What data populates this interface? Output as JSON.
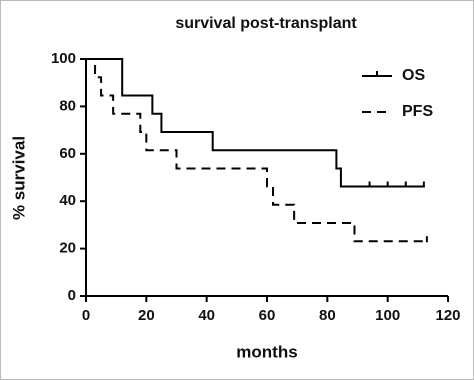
{
  "chart_data": {
    "type": "line",
    "title": "survival post-transplant",
    "x_label": "months",
    "y_label": "% survival",
    "xlim": [
      0,
      120
    ],
    "xticks": [
      0,
      20,
      40,
      60,
      80,
      100,
      120
    ],
    "ylim": [
      0,
      100
    ],
    "yticks": [
      0,
      20,
      40,
      60,
      80,
      100
    ],
    "legend": "top-right",
    "step": true,
    "series": [
      {
        "name": "OS",
        "color": "#000000",
        "dash": false,
        "x": [
          0,
          12,
          12,
          22,
          22,
          25,
          25,
          42,
          42,
          83,
          83,
          84.5,
          84.5,
          112
        ],
        "values": [
          100,
          100,
          84.6,
          84.6,
          76.9,
          76.9,
          69.2,
          69.2,
          61.5,
          61.5,
          53.8,
          53.8,
          46.2,
          46.2
        ],
        "censored_x": [
          94,
          100,
          106,
          112
        ],
        "censored_values": [
          46.2,
          46.2,
          46.2,
          46.2
        ]
      },
      {
        "name": "PFS",
        "color": "#000000",
        "dash": true,
        "x": [
          0,
          3,
          3,
          5,
          5,
          9,
          9,
          18,
          18,
          20,
          20,
          30,
          30,
          60,
          60,
          62,
          62,
          69,
          69,
          89,
          89,
          113
        ],
        "values": [
          100,
          100,
          92.3,
          92.3,
          84.6,
          84.6,
          76.9,
          76.9,
          69.2,
          69.2,
          61.5,
          61.5,
          53.8,
          53.8,
          46.2,
          46.2,
          38.5,
          38.5,
          30.8,
          30.8,
          23.1,
          23.1
        ],
        "censored_x": [
          113
        ],
        "censored_values": [
          23.1
        ]
      }
    ]
  }
}
